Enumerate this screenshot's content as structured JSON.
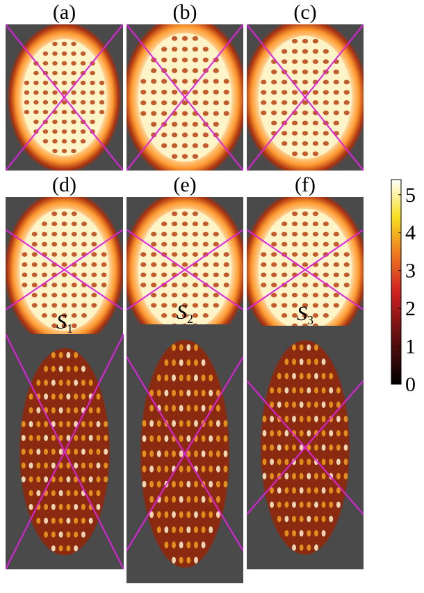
{
  "panels": [
    {
      "label": "(a)"
    },
    {
      "label": "(b)"
    },
    {
      "label": "(c)"
    },
    {
      "label": "(d)"
    },
    {
      "label": "(e)"
    },
    {
      "label": "(f)"
    },
    {
      "label": "S",
      "subscript": "1"
    },
    {
      "label": "S",
      "subscript": "2"
    },
    {
      "label": "S",
      "subscript": "3"
    }
  ],
  "colorbar": {
    "lim": [
      0,
      5.4
    ],
    "ticks": [
      0,
      1,
      2,
      3,
      4,
      5
    ]
  }
}
